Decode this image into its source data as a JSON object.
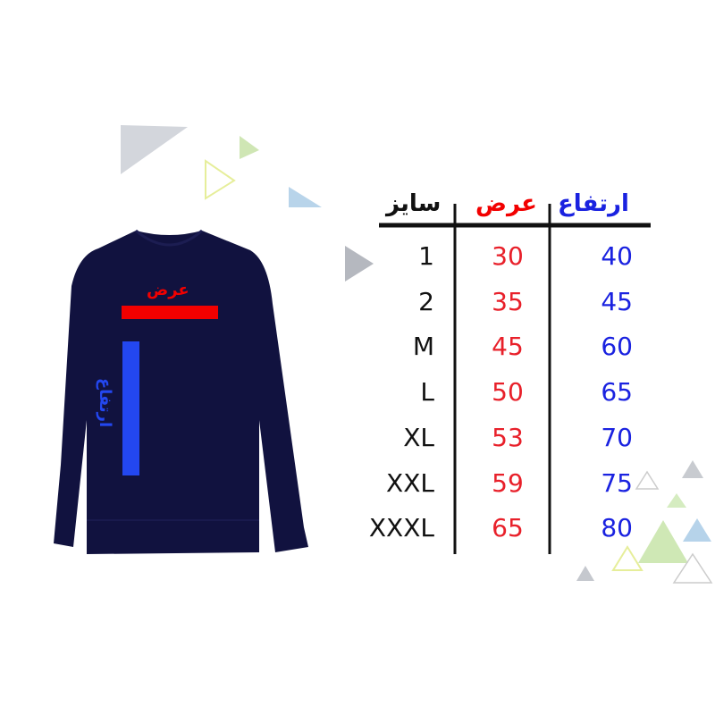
{
  "table": {
    "headers": {
      "size": "سایز",
      "width": "عرض",
      "height": "ارتفاع"
    },
    "rows": [
      {
        "size": "1",
        "width": "30",
        "height": "40"
      },
      {
        "size": "2",
        "width": "35",
        "height": "45"
      },
      {
        "size": "M",
        "width": "45",
        "height": "60"
      },
      {
        "size": "L",
        "width": "50",
        "height": "65"
      },
      {
        "size": "XL",
        "width": "53",
        "height": "70"
      },
      {
        "size": "XXL",
        "width": "59",
        "height": "75"
      },
      {
        "size": "XXXL",
        "width": "65",
        "height": "80"
      }
    ]
  },
  "shirt": {
    "width_label": "عرض",
    "height_label": "ارتفاع"
  },
  "colors": {
    "width": "#e8202a",
    "height": "#1a22e0",
    "shirt": "#11123f",
    "width_bar": "#f20000",
    "height_bar": "#2347f0"
  }
}
